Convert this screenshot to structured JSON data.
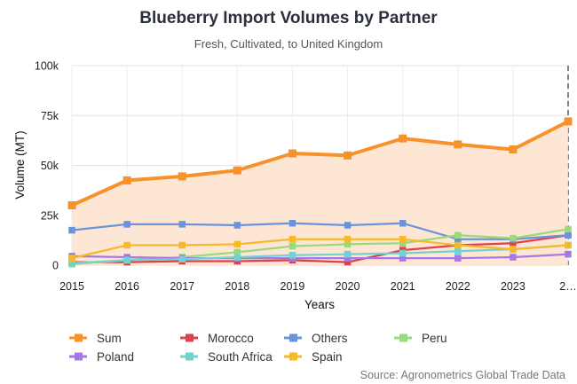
{
  "chart_data": {
    "type": "line",
    "title": "Blueberry Import Volumes by Partner",
    "subtitle": "Fresh, Cultivated, to United Kingdom",
    "xlabel": "Years",
    "ylabel": "Volume (MT)",
    "x": [
      "2015",
      "2016",
      "2017",
      "2018",
      "2019",
      "2020",
      "2021",
      "2022",
      "2023",
      "2…"
    ],
    "ylim": [
      0,
      100000
    ],
    "yticks": [
      0,
      25000,
      50000,
      75000,
      100000
    ],
    "ytick_labels": [
      "0",
      "25k",
      "50k",
      "75k",
      "100k"
    ],
    "grid": true,
    "legend_position": "bottom-left",
    "series": [
      {
        "name": "Sum",
        "color": "#f7922b",
        "values": [
          30000,
          42500,
          44500,
          47500,
          56000,
          55000,
          63500,
          60500,
          58000,
          72000
        ]
      },
      {
        "name": "Morocco",
        "color": "#e0404a",
        "values": [
          1500,
          1500,
          2000,
          2000,
          2500,
          1500,
          7500,
          10000,
          11000,
          15000
        ]
      },
      {
        "name": "Others",
        "color": "#6a93d8",
        "values": [
          17500,
          20500,
          20500,
          20000,
          21000,
          20000,
          21000,
          13000,
          13000,
          15000
        ]
      },
      {
        "name": "Peru",
        "color": "#9ad97e",
        "values": [
          500,
          2500,
          4000,
          6500,
          9500,
          10500,
          11000,
          15000,
          13500,
          18000
        ]
      },
      {
        "name": "Poland",
        "color": "#a678e0",
        "values": [
          4500,
          4000,
          3500,
          3500,
          3500,
          3500,
          3500,
          3500,
          4000,
          5500
        ]
      },
      {
        "name": "South Africa",
        "color": "#72d2d2",
        "values": [
          1000,
          2500,
          3000,
          4000,
          5000,
          5500,
          6000,
          7000,
          8000,
          10000
        ]
      },
      {
        "name": "Spain",
        "color": "#f5b92c",
        "values": [
          3500,
          10000,
          10000,
          10500,
          13000,
          13000,
          13000,
          10000,
          8000,
          10000
        ]
      }
    ],
    "marker": "square",
    "highlight_line_at": "2…",
    "source": "Source: Agronometrics Global Trade Data"
  }
}
